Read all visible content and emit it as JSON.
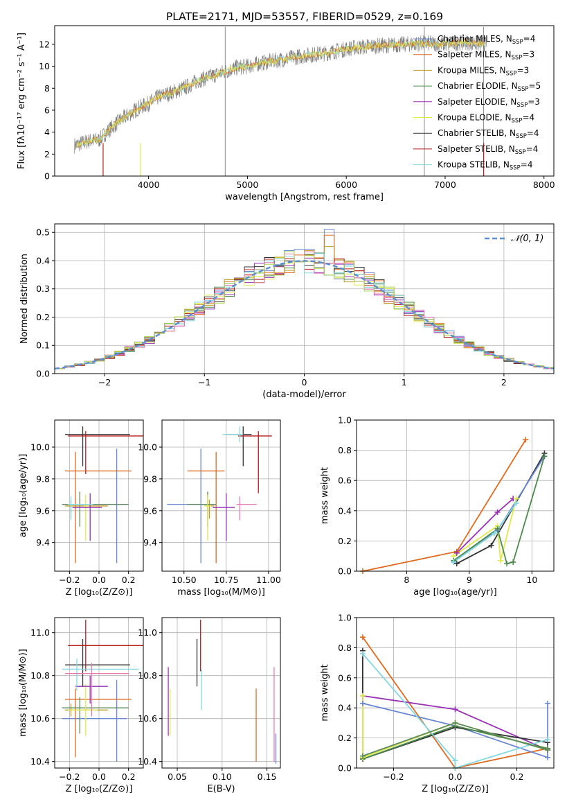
{
  "title": "PLATE=2171, MJD=53557, FIBERID=0529, z=0.169",
  "colors": {
    "spectrum": "#808080",
    "grid": "#b0b0b0",
    "gaussian": "#5b8fd1",
    "models": [
      "#6a87d5",
      "#e06b1f",
      "#c29a23",
      "#4b8a4b",
      "#9a30b6",
      "#dfea4a",
      "#333333",
      "#b81c1c",
      "#84d8e3",
      "#e878b7",
      "#a7d44e",
      "#5a8a5a"
    ]
  },
  "chart_data": [
    {
      "id": "spectrum",
      "type": "line",
      "xlabel": "wavelength [Angstrom, rest frame]",
      "ylabel": "Flux [fλ10⁻¹⁷ erg cm⁻² s⁻¹ A⁻¹]",
      "xlim": [
        3050,
        8100
      ],
      "ylim": [
        0,
        13.7
      ],
      "xticks": [
        4000,
        5000,
        6000,
        7000,
        8000
      ],
      "yticks": [
        0,
        2,
        4,
        6,
        8,
        10,
        12
      ],
      "grid": false,
      "legend_position": "upper-right",
      "legend": [
        {
          "label": "Chabrier MILES, N",
          "sub": "SSP",
          "tail": "=4"
        },
        {
          "label": "Salpeter MILES, N",
          "sub": "SSP",
          "tail": "=3"
        },
        {
          "label": "Kroupa MILES, N",
          "sub": "SSP",
          "tail": "=3"
        },
        {
          "label": "Chabrier ELODIE, N",
          "sub": "SSP",
          "tail": "=5"
        },
        {
          "label": "Salpeter ELODIE, N",
          "sub": "SSP",
          "tail": "=3"
        },
        {
          "label": "Kroupa ELODIE, N",
          "sub": "SSP",
          "tail": "=4"
        },
        {
          "label": "Chabrier STELIB, N",
          "sub": "SSP",
          "tail": "=4"
        },
        {
          "label": "Salpeter STELIB, N",
          "sub": "SSP",
          "tail": "=4"
        },
        {
          "label": "Kroupa STELIB, N",
          "sub": "SSP",
          "tail": "=4"
        }
      ],
      "continuum": {
        "x": [
          3250,
          3400,
          3500,
          3600,
          3700,
          3800,
          3900,
          4000,
          4100,
          4200,
          4300,
          4400,
          4500,
          4600,
          4700,
          4800,
          4900,
          5000,
          5200,
          5400,
          5600,
          5800,
          6000,
          6200,
          6400,
          6600,
          6800,
          7000,
          7200,
          7400
        ],
        "y": [
          2.8,
          3.2,
          3.3,
          4.2,
          5.0,
          5.6,
          6.2,
          6.6,
          7.2,
          7.5,
          7.8,
          8.2,
          8.7,
          9.0,
          9.3,
          9.6,
          9.9,
          10.0,
          10.4,
          10.7,
          11.0,
          11.2,
          11.6,
          11.8,
          11.9,
          12.0,
          12.1,
          12.0,
          12.2,
          12.0
        ]
      },
      "spikes": [
        {
          "x": 4775,
          "y": 13.6
        },
        {
          "x": 6790,
          "y": 13.6
        },
        {
          "x": 7390,
          "y": 13.6
        }
      ]
    },
    {
      "id": "residuals",
      "type": "histogram",
      "xlabel": "(data-model)/error",
      "ylabel": "Normed distribution",
      "xlim": [
        -2.5,
        2.5
      ],
      "ylim": [
        0,
        0.53
      ],
      "xticks": [
        -2,
        -1,
        0,
        1,
        2
      ],
      "yticks": [
        0.0,
        0.1,
        0.2,
        0.3,
        0.4,
        0.5
      ],
      "grid": true,
      "legend_position": "upper-right",
      "legend": "𝒩(0, 1)",
      "bin_width": 0.1,
      "peaks": [
        {
          "x": 0.25,
          "heights": [
            0.51,
            0.49,
            0.45
          ]
        },
        {
          "x": 0.0,
          "heights": [
            0.44,
            0.42
          ]
        }
      ]
    },
    {
      "id": "age_vs_Z",
      "type": "errorbar",
      "xlabel": "Z [log₁₀(Z/Z⊙)]",
      "ylabel": "age  [log₁₀(age/yr)]",
      "xlim": [
        -0.3,
        0.3
      ],
      "ylim": [
        9.22,
        10.17
      ],
      "xticks": [
        -0.2,
        0.0,
        0.2
      ],
      "yticks": [
        9.4,
        9.6,
        9.8,
        10.0
      ],
      "grid": true,
      "points": [
        {
          "x": 0.12,
          "xerr": [
            0.37,
            0.07
          ],
          "y": 9.64,
          "yerr": [
            0.37,
            0.35
          ],
          "c": 0
        },
        {
          "x": -0.16,
          "xerr": [
            0.07,
            0.38
          ],
          "y": 9.85,
          "yerr": [
            0.58,
            0.12
          ],
          "c": 1
        },
        {
          "x": -0.19,
          "xerr": [
            0.04,
            0.25
          ],
          "y": 9.63,
          "yerr": [
            0.08,
            0.04
          ],
          "c": 2
        },
        {
          "x": -0.13,
          "xerr": [
            0.12,
            0.33
          ],
          "y": 9.64,
          "yerr": [
            0.14,
            0.08
          ],
          "c": 11
        },
        {
          "x": -0.09,
          "xerr": [
            0.01,
            0.02
          ],
          "y": 9.63,
          "yerr": [
            0.22,
            0.07
          ],
          "c": 5
        },
        {
          "x": -0.06,
          "xerr": [
            0.12,
            0.08
          ],
          "y": 9.62,
          "yerr": [
            0.21,
            0.09
          ],
          "c": 4
        },
        {
          "x": -0.11,
          "xerr": [
            0.12,
            0.32
          ],
          "y": 10.08,
          "yerr": [
            0.2,
            0.05
          ],
          "c": 6
        },
        {
          "x": -0.09,
          "xerr": [
            0.12,
            0.4
          ],
          "y": 10.07,
          "yerr": [
            0.24,
            0.03
          ],
          "c": 7
        },
        {
          "x": -0.19,
          "xerr": [
            0.02,
            0.15
          ],
          "y": 9.64,
          "yerr": [
            0.1,
            0.05
          ],
          "c": 8
        }
      ]
    },
    {
      "id": "age_vs_mass",
      "type": "errorbar",
      "xlabel": "mass [log₁₀(M/M⊙)]",
      "ylabel": "",
      "xlim": [
        10.37,
        11.07
      ],
      "ylim": [
        9.22,
        10.17
      ],
      "xticks": [
        10.5,
        10.75,
        11.0
      ],
      "yticks": [
        9.4,
        9.6,
        9.8,
        10.0
      ],
      "grid": true,
      "points": [
        {
          "x": 10.6,
          "xerr": [
            0.2,
            0.08
          ],
          "y": 9.64,
          "yerr": [
            0.37,
            0.35
          ],
          "c": 0
        },
        {
          "x": 10.69,
          "xerr": [
            0.17,
            0.05
          ],
          "y": 9.85,
          "yerr": [
            0.58,
            0.12
          ],
          "c": 1
        },
        {
          "x": 10.65,
          "xerr": [
            0.03,
            0.03
          ],
          "y": 9.63,
          "yerr": [
            0.08,
            0.04
          ],
          "c": 2
        },
        {
          "x": 10.64,
          "xerr": [
            0.12,
            0.05
          ],
          "y": 9.64,
          "yerr": [
            0.14,
            0.08
          ],
          "c": 11
        },
        {
          "x": 10.64,
          "xerr": [
            0.02,
            0.02
          ],
          "y": 9.63,
          "yerr": [
            0.22,
            0.07
          ],
          "c": 5
        },
        {
          "x": 10.75,
          "xerr": [
            0.08,
            0.05
          ],
          "y": 9.62,
          "yerr": [
            0.21,
            0.09
          ],
          "c": 4
        },
        {
          "x": 10.85,
          "xerr": [
            0.1,
            0.05
          ],
          "y": 10.08,
          "yerr": [
            0.2,
            0.05
          ],
          "c": 6
        },
        {
          "x": 10.94,
          "xerr": [
            0.12,
            0.08
          ],
          "y": 10.07,
          "yerr": [
            0.36,
            0.03
          ],
          "c": 7
        },
        {
          "x": 10.83,
          "xerr": [
            0.02,
            0.1
          ],
          "y": 9.64,
          "yerr": [
            0.1,
            0.05
          ],
          "c": 9
        },
        {
          "x": 10.83,
          "xerr": [
            0.1,
            0.02
          ],
          "y": 10.08,
          "yerr": [
            0.05,
            0.05
          ],
          "c": 8
        }
      ]
    },
    {
      "id": "mass_weight_vs_age",
      "type": "line",
      "xlabel": "age  [log₁₀(age/yr)]",
      "ylabel": "mass weight",
      "xlim": [
        7.2,
        10.35
      ],
      "ylim": [
        0.0,
        1.0
      ],
      "xticks": [
        8,
        9,
        10
      ],
      "yticks": [
        0.0,
        0.2,
        0.4,
        0.6,
        0.8,
        1.0
      ],
      "grid": true,
      "series": [
        {
          "c": 1,
          "x": [
            7.3,
            8.8,
            9.9
          ],
          "y": [
            0.0,
            0.13,
            0.87
          ]
        },
        {
          "c": 6,
          "x": [
            8.8,
            9.35,
            10.2
          ],
          "y": [
            0.05,
            0.17,
            0.78
          ]
        },
        {
          "c": 0,
          "x": [
            8.75,
            9.45,
            10.2
          ],
          "y": [
            0.06,
            0.27,
            0.76
          ]
        },
        {
          "c": 4,
          "x": [
            8.8,
            9.45,
            9.7
          ],
          "y": [
            0.12,
            0.39,
            0.48
          ]
        },
        {
          "c": 5,
          "x": [
            8.75,
            9.45,
            9.5,
            9.75
          ],
          "y": [
            0.1,
            0.3,
            0.07,
            0.48
          ]
        },
        {
          "c": 3,
          "x": [
            8.75,
            9.45,
            9.6,
            9.7,
            10.2
          ],
          "y": [
            0.07,
            0.28,
            0.05,
            0.06,
            0.76
          ]
        },
        {
          "c": 8,
          "x": [
            8.75,
            9.4,
            9.75
          ],
          "y": [
            0.06,
            0.25,
            0.45
          ]
        }
      ]
    },
    {
      "id": "mass_vs_Z",
      "type": "errorbar",
      "xlabel": "Z [log₁₀(Z/Z⊙)]",
      "ylabel": "mass [log₁₀(M/M⊙)]",
      "xlim": [
        -0.3,
        0.3
      ],
      "ylim": [
        10.37,
        11.07
      ],
      "xticks": [
        -0.2,
        0.0,
        0.2
      ],
      "yticks": [
        10.4,
        10.6,
        10.8,
        11.0
      ],
      "grid": true,
      "points": [
        {
          "x": 0.12,
          "xerr": [
            0.37,
            0.07
          ],
          "y": 10.6,
          "yerr": [
            0.2,
            0.18
          ],
          "c": 0
        },
        {
          "x": -0.16,
          "xerr": [
            0.07,
            0.38
          ],
          "y": 10.69,
          "yerr": [
            0.27,
            0.05
          ],
          "c": 1
        },
        {
          "x": -0.19,
          "xerr": [
            0.04,
            0.25
          ],
          "y": 10.64,
          "yerr": [
            0.03,
            0.03
          ],
          "c": 2
        },
        {
          "x": -0.13,
          "xerr": [
            0.12,
            0.33
          ],
          "y": 10.65,
          "yerr": [
            0.12,
            0.05
          ],
          "c": 11
        },
        {
          "x": -0.09,
          "xerr": [
            0.12,
            0.08
          ],
          "y": 10.64,
          "yerr": [
            0.12,
            0.12
          ],
          "c": 5
        },
        {
          "x": -0.06,
          "xerr": [
            0.1,
            0.12
          ],
          "y": 10.75,
          "yerr": [
            0.08,
            0.05
          ],
          "c": 4
        },
        {
          "x": -0.11,
          "xerr": [
            0.12,
            0.32
          ],
          "y": 10.85,
          "yerr": [
            0.1,
            0.12
          ],
          "c": 6
        },
        {
          "x": -0.09,
          "xerr": [
            0.12,
            0.4
          ],
          "y": 10.94,
          "yerr": [
            0.12,
            0.12
          ],
          "c": 7
        },
        {
          "x": -0.15,
          "xerr": [
            0.1,
            0.42
          ],
          "y": 10.83,
          "yerr": [
            0.1,
            0.05
          ],
          "c": 8
        },
        {
          "x": -0.05,
          "xerr": [
            0.18,
            0.25
          ],
          "y": 10.81,
          "yerr": [
            0.2,
            0.05
          ],
          "c": 9
        }
      ]
    },
    {
      "id": "mass_vs_EBV",
      "type": "errorbar",
      "xlabel": "E(B-V)",
      "ylabel": "",
      "xlim": [
        0.033,
        0.165
      ],
      "ylim": [
        10.37,
        11.07
      ],
      "xticks": [
        0.05,
        0.1,
        0.15
      ],
      "yticks": [
        10.4,
        10.6,
        10.8,
        11.0
      ],
      "grid": true,
      "points": [
        {
          "x": 0.04,
          "y": 10.68,
          "yerr": [
            0.16,
            0.16
          ],
          "c": 4
        },
        {
          "x": 0.042,
          "y": 10.63,
          "yerr": [
            0.11,
            0.11
          ],
          "c": 5
        },
        {
          "x": 0.072,
          "y": 10.85,
          "yerr": [
            0.1,
            0.12
          ],
          "c": 6
        },
        {
          "x": 0.076,
          "y": 10.94,
          "yerr": [
            0.12,
            0.12
          ],
          "c": 7
        },
        {
          "x": 0.077,
          "y": 10.73,
          "yerr": [
            0.09,
            0.1
          ],
          "c": 8
        },
        {
          "x": 0.138,
          "y": 10.57,
          "yerr": [
            0.17,
            0.17
          ],
          "c": 1
        },
        {
          "x": 0.158,
          "y": 10.62,
          "yerr": [
            0.22,
            0.22
          ],
          "c": 9
        },
        {
          "x": 0.16,
          "y": 10.46,
          "yerr": [
            0.07,
            0.07
          ],
          "c": 0
        }
      ]
    },
    {
      "id": "mass_weight_vs_Z",
      "type": "line",
      "xlabel": "Z [log₁₀(Z/Z⊙)]",
      "ylabel": "mass weight",
      "xlim": [
        -0.32,
        0.32
      ],
      "ylim": [
        0.0,
        1.0
      ],
      "xticks": [
        -0.2,
        0.0,
        0.2
      ],
      "yticks": [
        0.0,
        0.2,
        0.4,
        0.6,
        0.8,
        1.0
      ],
      "grid": true,
      "series": [
        {
          "c": 1,
          "x": [
            -0.3,
            0.0,
            0.3
          ],
          "y": [
            0.87,
            0.0,
            0.13
          ]
        },
        {
          "c": 4,
          "x": [
            -0.3,
            0.0,
            0.3
          ],
          "y": [
            0.48,
            0.39,
            0.12
          ]
        },
        {
          "c": 0,
          "x": [
            -0.3,
            0.0,
            0.3,
            0.3
          ],
          "y": [
            0.43,
            0.28,
            0.07,
            0.43
          ]
        },
        {
          "c": 6,
          "x": [
            -0.3,
            -0.3,
            0.0,
            0.3
          ],
          "y": [
            0.78,
            0.06,
            0.27,
            0.17
          ]
        },
        {
          "c": 3,
          "x": [
            -0.3,
            0.0,
            0.3
          ],
          "y": [
            0.06,
            0.28,
            0.13
          ]
        },
        {
          "c": 5,
          "x": [
            -0.3,
            -0.3,
            0.0,
            0.3
          ],
          "y": [
            0.48,
            0.07,
            0.3,
            0.12
          ]
        },
        {
          "c": 8,
          "x": [
            -0.3,
            0.0,
            0.0,
            0.3
          ],
          "y": [
            0.76,
            0.05,
            0.0,
            0.19
          ]
        },
        {
          "c": 11,
          "x": [
            -0.3,
            0.0,
            0.3
          ],
          "y": [
            0.08,
            0.3,
            0.12
          ]
        }
      ]
    }
  ]
}
